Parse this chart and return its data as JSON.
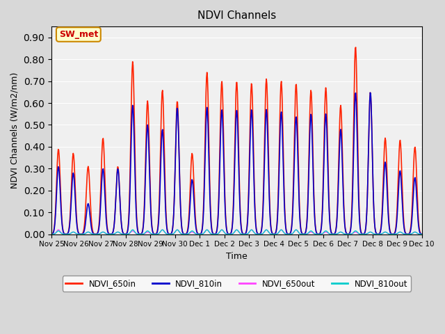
{
  "title": "NDVI Channels",
  "ylabel": "NDVI Channels (W/m2/nm)",
  "xlabel": "Time",
  "ylim": [
    0.0,
    0.95
  ],
  "yticks": [
    0.0,
    0.1,
    0.2,
    0.3,
    0.4,
    0.5,
    0.6,
    0.7,
    0.8,
    0.9
  ],
  "bg_color": "#e8e8e8",
  "plot_bg_color": "#f0f0f0",
  "annotation_text": "SW_met",
  "annotation_bg": "#ffffcc",
  "annotation_border": "#cc8800",
  "annotation_text_color": "#cc0000",
  "colors": {
    "NDVI_650in": "#ff2200",
    "NDVI_810in": "#0000cc",
    "NDVI_650out": "#ff44ff",
    "NDVI_810out": "#00cccc"
  },
  "linewidths": {
    "NDVI_650in": 1.2,
    "NDVI_810in": 1.2,
    "NDVI_650out": 1.0,
    "NDVI_810out": 1.0
  },
  "x_tick_labels": [
    "Nov 25",
    "Nov 26",
    "Nov 27",
    "Nov 28",
    "Nov 29",
    "Nov 30",
    "Dec 1",
    "Dec 2",
    "Dec 3",
    "Dec 4",
    "Dec 5",
    "Dec 6",
    "Dec 7",
    "Dec 8",
    "Dec 9",
    "Dec 10"
  ],
  "peaks_650in": [
    0.39,
    0.37,
    0.31,
    0.44,
    0.31,
    0.79,
    0.61,
    0.66,
    0.61,
    0.37,
    0.74,
    0.7,
    0.7,
    0.69,
    0.71,
    0.7,
    0.69,
    0.66,
    0.67,
    0.59,
    0.86,
    0.65,
    0.44,
    0.43,
    0.4
  ],
  "peaks_810in": [
    0.31,
    0.28,
    0.14,
    0.3,
    0.3,
    0.59,
    0.5,
    0.48,
    0.58,
    0.25,
    0.58,
    0.57,
    0.57,
    0.57,
    0.57,
    0.56,
    0.54,
    0.55,
    0.55,
    0.48,
    0.65,
    0.65,
    0.33,
    0.29,
    0.26
  ],
  "peaks_650out": [
    0.02,
    0.01,
    0.01,
    0.01,
    0.01,
    0.015,
    0.01,
    0.02,
    0.02,
    0.01,
    0.02,
    0.02,
    0.02,
    0.02,
    0.02,
    0.02,
    0.02,
    0.01,
    0.01,
    0.01,
    0.01,
    0.01,
    0.01,
    0.01,
    0.01
  ],
  "peaks_810out": [
    0.015,
    0.01,
    0.01,
    0.01,
    0.01,
    0.02,
    0.015,
    0.02,
    0.02,
    0.015,
    0.02,
    0.02,
    0.02,
    0.02,
    0.02,
    0.02,
    0.02,
    0.015,
    0.015,
    0.01,
    0.015,
    0.01,
    0.01,
    0.01,
    0.01
  ]
}
